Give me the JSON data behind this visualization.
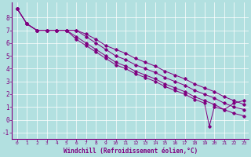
{
  "xlabel": "Windchill (Refroidissement éolien,°C)",
  "ylabel": "",
  "background_color": "#b2e0e0",
  "line_color": "#800080",
  "xlim": [
    -0.5,
    23.5
  ],
  "ylim": [
    -1.5,
    9.2
  ],
  "yticks": [
    -1,
    0,
    1,
    2,
    3,
    4,
    5,
    6,
    7,
    8
  ],
  "xticks": [
    0,
    1,
    2,
    3,
    4,
    5,
    6,
    7,
    8,
    9,
    10,
    11,
    12,
    13,
    14,
    15,
    16,
    17,
    18,
    19,
    20,
    21,
    22,
    23
  ],
  "series": [
    {
      "x": [
        0,
        1,
        2,
        3,
        4,
        5,
        6,
        7,
        8,
        9,
        10,
        11,
        12,
        13,
        14,
        15,
        16,
        17,
        18,
        19,
        20,
        21,
        22,
        23
      ],
      "y": [
        8.7,
        7.5,
        7.0,
        7.0,
        7.0,
        7.0,
        7.0,
        6.7,
        6.3,
        5.8,
        5.5,
        5.2,
        4.8,
        4.5,
        4.2,
        3.8,
        3.5,
        3.2,
        2.8,
        2.5,
        2.2,
        1.8,
        1.5,
        1.2
      ]
    },
    {
      "x": [
        0,
        1,
        2,
        3,
        4,
        5,
        6,
        7,
        8,
        9,
        10,
        11,
        12,
        13,
        14,
        15,
        16,
        17,
        18,
        19,
        20,
        21,
        22,
        23
      ],
      "y": [
        8.7,
        7.5,
        7.0,
        7.0,
        7.0,
        7.0,
        7.0,
        6.5,
        6.0,
        5.5,
        5.0,
        4.7,
        4.3,
        4.0,
        3.7,
        3.3,
        3.0,
        2.7,
        2.3,
        2.0,
        1.7,
        1.3,
        1.0,
        0.8
      ]
    },
    {
      "x": [
        0,
        1,
        2,
        3,
        4,
        5,
        6,
        7,
        8,
        9,
        10,
        11,
        12,
        13,
        14,
        15,
        16,
        17,
        18,
        19,
        20,
        21,
        22,
        23
      ],
      "y": [
        8.7,
        7.5,
        7.0,
        7.0,
        7.0,
        7.0,
        6.5,
        6.0,
        5.5,
        5.0,
        4.5,
        4.2,
        3.8,
        3.5,
        3.2,
        2.8,
        2.5,
        2.2,
        1.8,
        1.5,
        1.2,
        0.8,
        0.5,
        0.3
      ]
    },
    {
      "x": [
        0,
        1,
        2,
        3,
        4,
        5,
        6,
        7,
        8,
        9,
        10,
        11,
        12,
        13,
        14,
        15,
        16,
        17,
        18,
        19,
        19.5,
        20,
        21,
        22,
        23
      ],
      "y": [
        8.7,
        7.5,
        7.0,
        7.0,
        7.0,
        7.0,
        6.3,
        5.8,
        5.3,
        4.8,
        4.3,
        4.0,
        3.6,
        3.3,
        3.0,
        2.6,
        2.3,
        2.0,
        1.6,
        1.3,
        -0.5,
        1.0,
        0.8,
        1.3,
        1.5
      ]
    }
  ]
}
